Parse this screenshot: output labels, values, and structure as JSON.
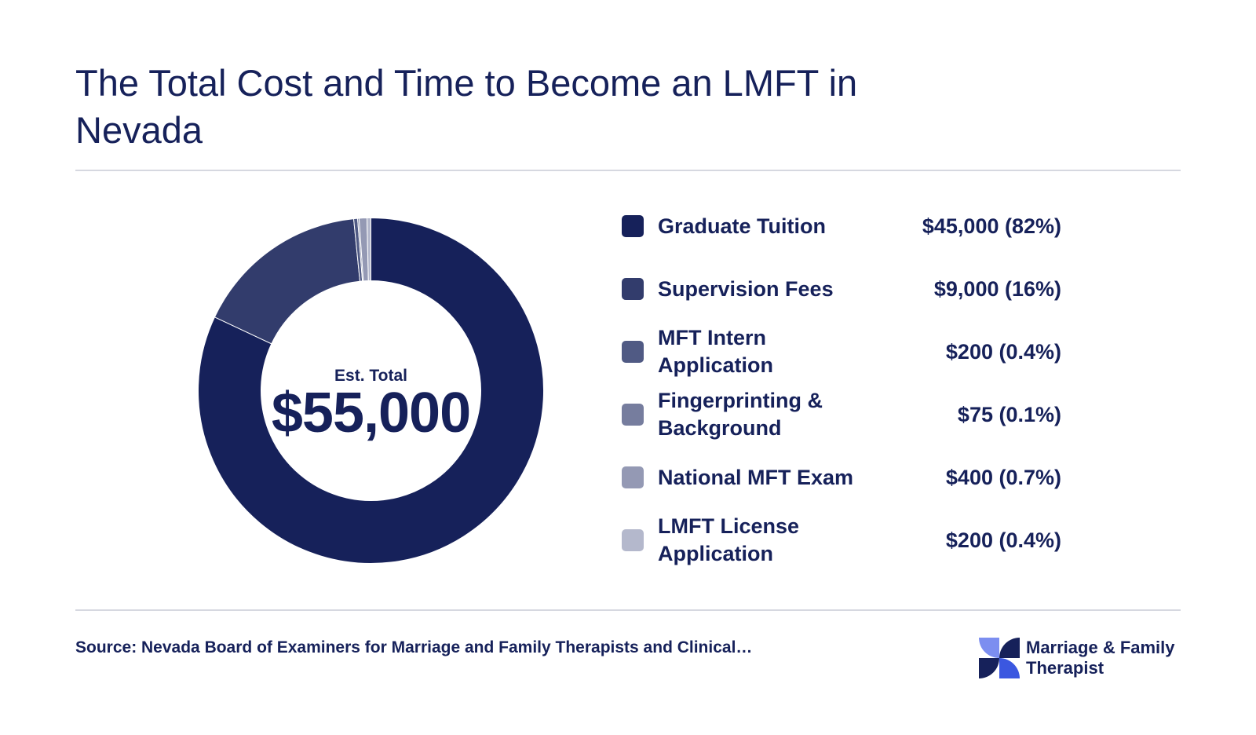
{
  "title": "The Total Cost and Time to Become an LMFT in Nevada",
  "chart_data": {
    "type": "pie",
    "center_label": "Est. Total",
    "center_value": "$55,000",
    "slices": [
      {
        "label": "Graduate Tuition",
        "value": 45000,
        "display": "$45,000 (82%)",
        "color": "#16215a"
      },
      {
        "label": "Supervision Fees",
        "value": 9000,
        "display": "$9,000 (16%)",
        "color": "#323c6c"
      },
      {
        "label": "MFT Intern Application",
        "value": 200,
        "display": "$200 (0.4%)",
        "color": "#505a84"
      },
      {
        "label": "Fingerprinting & Background",
        "value": 75,
        "display": "$75 (0.1%)",
        "color": "#767d9e"
      },
      {
        "label": "National MFT Exam",
        "value": 400,
        "display": "$400 (0.7%)",
        "color": "#9499b4"
      },
      {
        "label": "LMFT License Application",
        "value": 200,
        "display": "$200 (0.4%)",
        "color": "#b4b8cc"
      }
    ]
  },
  "source": "Source: Nevada Board of Examiners for Marriage and Family Therapists and Clinical…",
  "brand": {
    "name_line1": "Marriage & Family",
    "name_line2": "Therapist",
    "logo_icon": "quatrefoil-logo-icon"
  }
}
